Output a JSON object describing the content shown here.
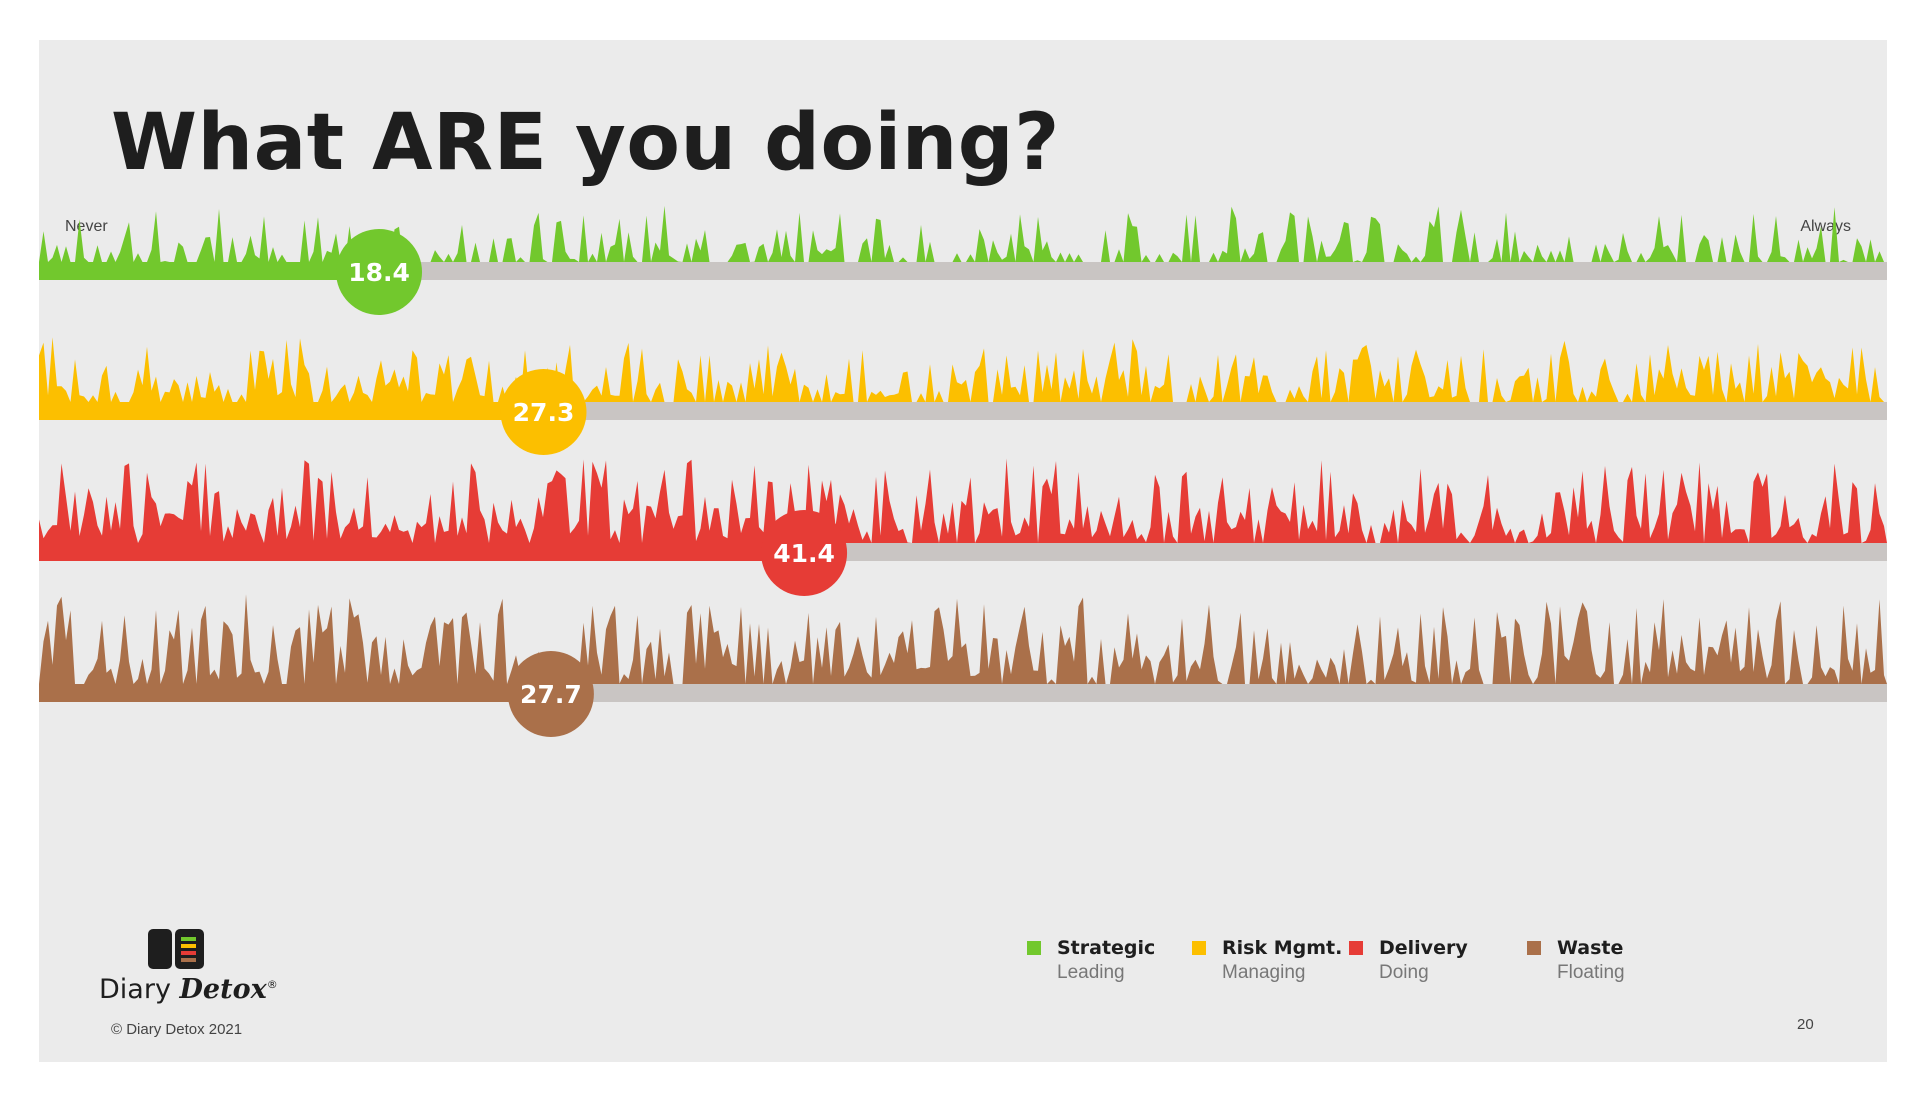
{
  "slide": {
    "title": "What ARE you doing?",
    "copyright": "© Diary Detox 2021",
    "page_number": "20",
    "logo": {
      "wordmark_part1": "Diary",
      "wordmark_part2": "Detox",
      "registered": "®"
    }
  },
  "chart_data": {
    "type": "area",
    "title": "What ARE you doing?",
    "axis": {
      "min_label": "Never",
      "max_label": "Always",
      "min": 0,
      "max": 100
    },
    "series": [
      {
        "name": "Strategic",
        "subtitle": "Leading",
        "color": "#72c82d",
        "value": 18.4,
        "label": "18.4"
      },
      {
        "name": "Risk Mgmt.",
        "subtitle": "Managing",
        "color": "#fcbf00",
        "value": 27.3,
        "label": "27.3"
      },
      {
        "name": "Delivery",
        "subtitle": "Doing",
        "color": "#e63c36",
        "value": 41.4,
        "label": "41.4"
      },
      {
        "name": "Waste",
        "subtitle": "Floating",
        "color": "#aa704a",
        "value": 27.7,
        "label": "27.7"
      }
    ],
    "track_color": "#c9c5c3"
  }
}
